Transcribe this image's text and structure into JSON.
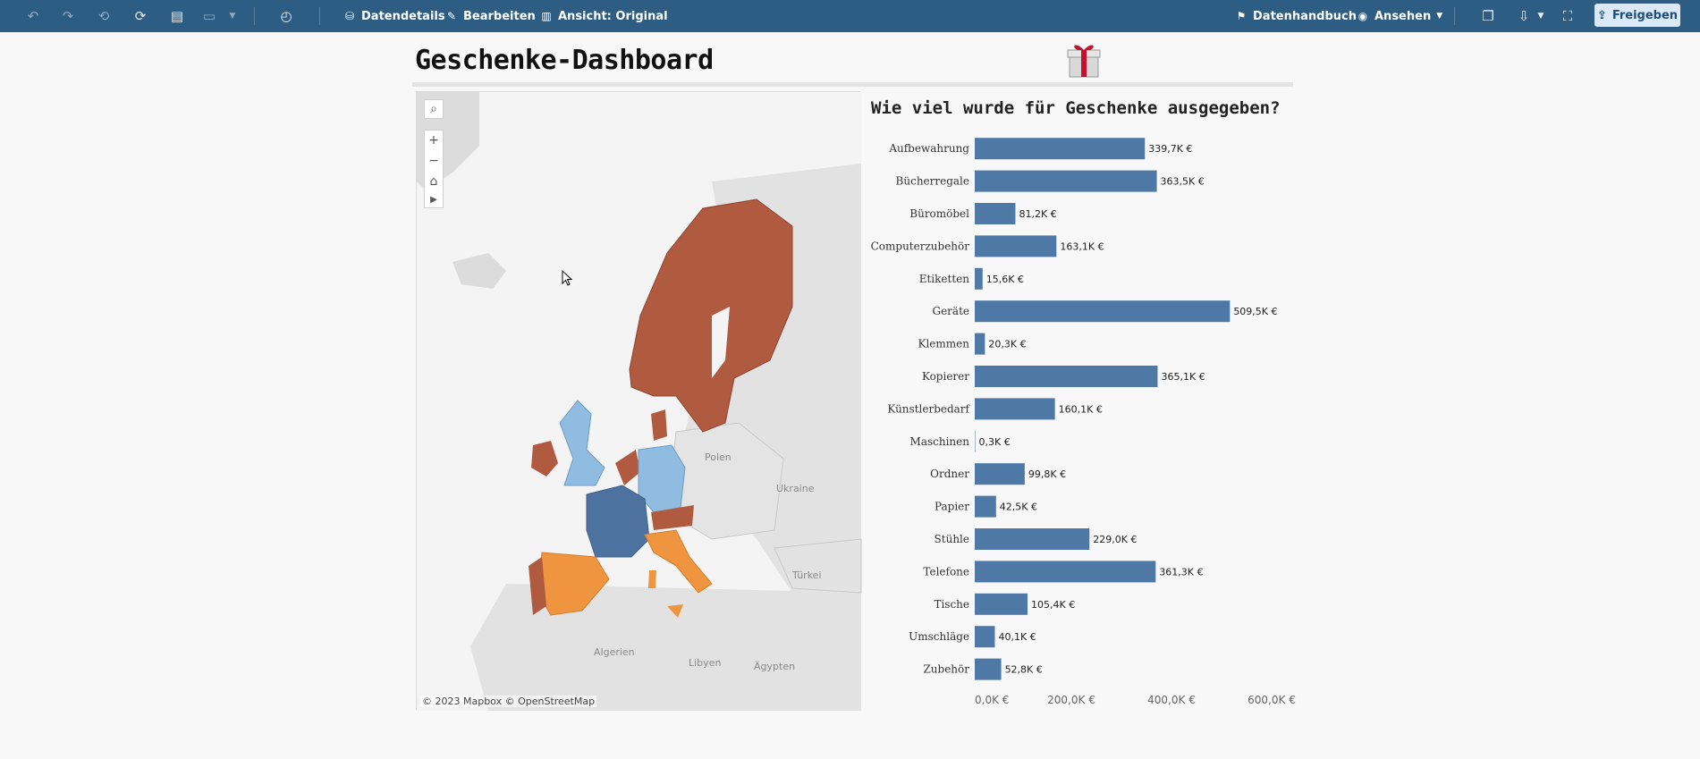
{
  "toolbar": {
    "undo": "undo-icon",
    "redo": "redo-icon",
    "revert": "revert-icon",
    "refresh": "refresh-data-icon",
    "pause": "pause-updates-icon",
    "present": "presentation-icon",
    "perf": "performance-icon",
    "data_details": "Datendetails",
    "edit": "Bearbeiten",
    "view": "Ansicht: Original",
    "data_guide": "Datenhandbuch",
    "watch": "Ansehen",
    "share": "Freigeben"
  },
  "dashboard": {
    "title": "Geschenke-Dashboard"
  },
  "map": {
    "attribution": "© 2023 Mapbox  © OpenStreetMap",
    "labels": [
      "Polen",
      "Ukraine",
      "Türkei",
      "Algerien",
      "Libyen",
      "Ägypten"
    ],
    "colors": {
      "dark_orange": "#b05a40",
      "orange": "#f0953f",
      "blue_dark": "#4e72a0",
      "blue_light": "#8fbce0",
      "land": "#e4e4e4",
      "water": "#f6f6f6"
    }
  },
  "chart_data": {
    "type": "bar",
    "orientation": "horizontal",
    "title": "Wie viel wurde für Geschenke ausgegeben?",
    "categories": [
      "Aufbewahrung",
      "Bücherregale",
      "Büromöbel",
      "Computerzubehör",
      "Etiketten",
      "Geräte",
      "Klemmen",
      "Kopierer",
      "Künstlerbedarf",
      "Maschinen",
      "Ordner",
      "Papier",
      "Stühle",
      "Telefone",
      "Tische",
      "Umschläge",
      "Zubehör"
    ],
    "values": [
      339.7,
      363.5,
      81.2,
      163.1,
      15.6,
      509.5,
      20.3,
      365.1,
      160.1,
      0.3,
      99.8,
      42.5,
      229.0,
      361.3,
      105.4,
      40.1,
      52.8
    ],
    "value_labels": [
      "339,7K €",
      "363,5K €",
      "81,2K €",
      "163,1K €",
      "15,6K €",
      "509,5K €",
      "20,3K €",
      "365,1K €",
      "160,1K €",
      "0,3K €",
      "99,8K €",
      "42,5K €",
      "229,0K €",
      "361,3K €",
      "105,4K €",
      "40,1K €",
      "52,8K €"
    ],
    "x_ticks": [
      "0,0K €",
      "200,0K €",
      "400,0K €",
      "600,0K €"
    ],
    "x_tick_values": [
      0,
      200,
      400,
      600
    ],
    "xlim": [
      0,
      600
    ],
    "bar_color": "#4e79a7",
    "grid": false
  }
}
